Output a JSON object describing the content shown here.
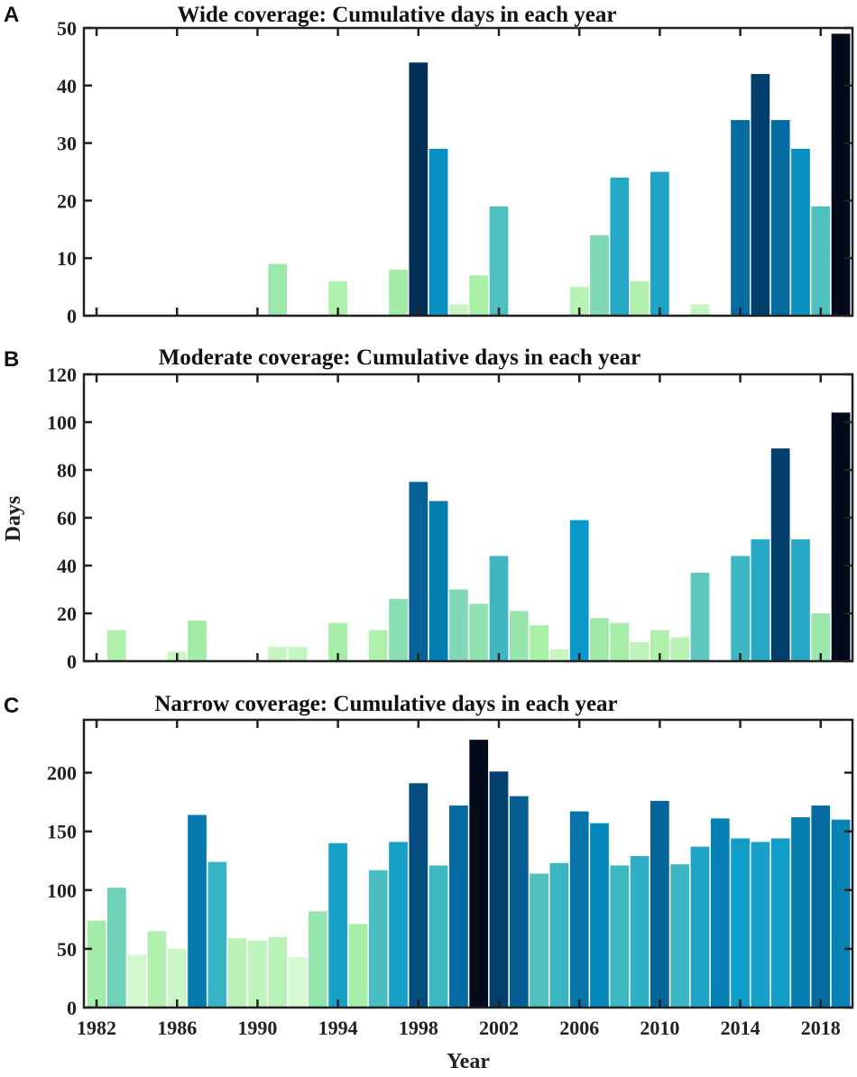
{
  "chart_data": [
    {
      "panel": "A",
      "type": "bar",
      "title": "Wide coverage: Cumulative days in each year",
      "x": [
        1982,
        1983,
        1984,
        1985,
        1986,
        1987,
        1988,
        1989,
        1990,
        1991,
        1992,
        1993,
        1994,
        1995,
        1996,
        1997,
        1998,
        1999,
        2000,
        2001,
        2002,
        2003,
        2004,
        2005,
        2006,
        2007,
        2008,
        2009,
        2010,
        2011,
        2012,
        2013,
        2014,
        2015,
        2016,
        2017,
        2018,
        2019
      ],
      "values": [
        0,
        0,
        0,
        0,
        0,
        0,
        0,
        0,
        0,
        9,
        0,
        0,
        6,
        0,
        0,
        8,
        44,
        29,
        2,
        7,
        19,
        0,
        0,
        0,
        5,
        14,
        24,
        6,
        25,
        0,
        2,
        0,
        34,
        42,
        34,
        29,
        19,
        49
      ],
      "ylim": [
        0,
        50
      ],
      "yticks": [
        "0",
        "10",
        "20",
        "30",
        "40",
        "50"
      ]
    },
    {
      "panel": "B",
      "type": "bar",
      "title": "Moderate coverage: Cumulative days in each year",
      "x": [
        1982,
        1983,
        1984,
        1985,
        1986,
        1987,
        1988,
        1989,
        1990,
        1991,
        1992,
        1993,
        1994,
        1995,
        1996,
        1997,
        1998,
        1999,
        2000,
        2001,
        2002,
        2003,
        2004,
        2005,
        2006,
        2007,
        2008,
        2009,
        2010,
        2011,
        2012,
        2013,
        2014,
        2015,
        2016,
        2017,
        2018,
        2019
      ],
      "values": [
        0,
        13,
        0,
        0,
        4,
        17,
        0,
        0,
        0,
        6,
        6,
        0,
        16,
        0,
        13,
        26,
        75,
        67,
        30,
        24,
        44,
        21,
        15,
        5,
        59,
        18,
        16,
        8,
        13,
        10,
        37,
        0,
        44,
        51,
        89,
        51,
        20,
        104
      ],
      "ylim": [
        0,
        120
      ],
      "yticks": [
        "0",
        "20",
        "40",
        "60",
        "80",
        "100",
        "120"
      ],
      "ylabel": "Days"
    },
    {
      "panel": "C",
      "type": "bar",
      "title": "Narrow coverage: Cumulative days in each year",
      "x": [
        1982,
        1983,
        1984,
        1985,
        1986,
        1987,
        1988,
        1989,
        1990,
        1991,
        1992,
        1993,
        1994,
        1995,
        1996,
        1997,
        1998,
        1999,
        2000,
        2001,
        2002,
        2003,
        2004,
        2005,
        2006,
        2007,
        2008,
        2009,
        2010,
        2011,
        2012,
        2013,
        2014,
        2015,
        2016,
        2017,
        2018,
        2019
      ],
      "values": [
        74,
        102,
        45,
        65,
        50,
        164,
        124,
        59,
        57,
        60,
        43,
        82,
        140,
        71,
        117,
        141,
        191,
        121,
        172,
        228,
        201,
        180,
        114,
        123,
        167,
        157,
        121,
        129,
        176,
        122,
        137,
        161,
        144,
        141,
        144,
        162,
        172,
        160
      ],
      "ylim": [
        0,
        245
      ],
      "yticks": [
        "0",
        "50",
        "100",
        "150",
        "200"
      ],
      "xlabel": "Year",
      "xticks": [
        "1982",
        "1986",
        "1990",
        "1994",
        "1998",
        "2002",
        "2006",
        "2010",
        "2014",
        "2018"
      ]
    }
  ],
  "colormap": [
    "#d6f8d2",
    "#a9efa6",
    "#80d9b6",
    "#3bb6c4",
    "#0797c9",
    "#05659b",
    "#033f6d",
    "#020a1c"
  ]
}
